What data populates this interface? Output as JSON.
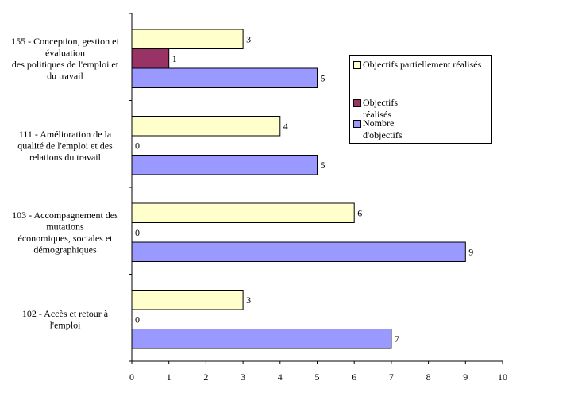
{
  "chart_data": {
    "type": "bar",
    "orientation": "horizontal",
    "categories": [
      [
        "155 - Conception, gestion et",
        "évaluation",
        "des politiques de l'emploi et",
        "du travail"
      ],
      [
        "111 - Amélioration de la",
        "qualité de l'emploi et des",
        "relations du travail"
      ],
      [
        "103 - Accompagnement des",
        "mutations",
        "économiques, sociales et",
        "démographiques"
      ],
      [
        "102 - Accès et retour à",
        "l'emploi"
      ]
    ],
    "series": [
      {
        "name": "Objectifs partiellement réalisés",
        "legend_lines": [
          "Objectifs partiellement réalisés"
        ],
        "color": "#FFFFCC",
        "values": [
          3,
          4,
          6,
          3
        ]
      },
      {
        "name": "Objectifs réalisés",
        "legend_lines": [
          "Objectifs",
          "réalisés"
        ],
        "color": "#993366",
        "values": [
          1,
          0,
          0,
          0
        ]
      },
      {
        "name": "Nombre d'objectifs",
        "legend_lines": [
          "Nombre",
          "d'objectifs"
        ],
        "color": "#9999FF",
        "values": [
          5,
          5,
          9,
          7
        ]
      }
    ],
    "xlim": [
      0,
      10
    ],
    "xticks": [
      "0",
      "1",
      "2",
      "3",
      "4",
      "5",
      "6",
      "7",
      "8",
      "9",
      "10"
    ],
    "grid": false,
    "legend_position": "right",
    "data_labels": true
  }
}
